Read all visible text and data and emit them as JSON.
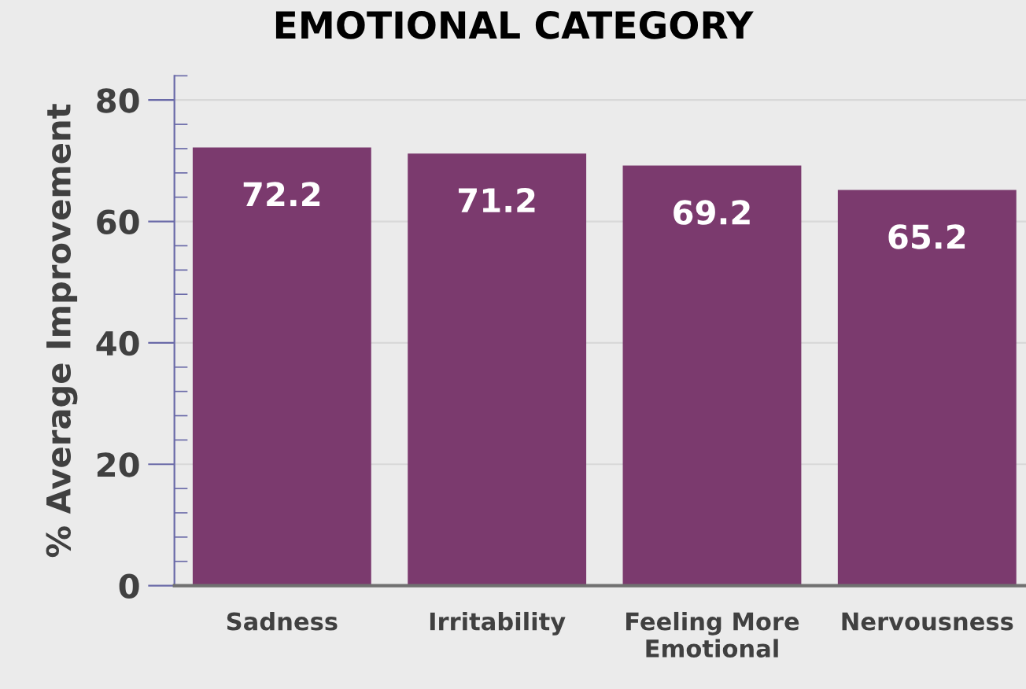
{
  "chart_data": {
    "type": "bar",
    "title": "EMOTIONAL CATEGORY",
    "ylabel": "% Average Improvement",
    "categories": [
      "Sadness",
      "Irritability",
      "Feeling More\nEmotional",
      "Nervousness"
    ],
    "values": [
      72.2,
      71.2,
      69.2,
      65.2
    ],
    "color": "#7b3a6e",
    "ylim": [
      0,
      84
    ],
    "yticks": [
      0,
      20,
      40,
      60,
      80
    ],
    "grid": "y",
    "data_labels": true
  }
}
